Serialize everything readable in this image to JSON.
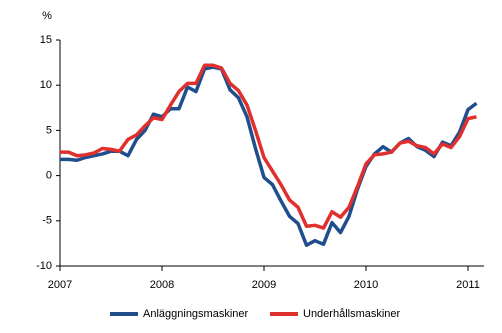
{
  "chart_data": {
    "type": "line",
    "y_label": "%",
    "categories": [
      "2007",
      null,
      null,
      null,
      null,
      null,
      null,
      null,
      null,
      null,
      null,
      null,
      "2008",
      null,
      null,
      null,
      null,
      null,
      null,
      null,
      null,
      null,
      null,
      null,
      "2009",
      null,
      null,
      null,
      null,
      null,
      null,
      null,
      null,
      null,
      null,
      null,
      "2010",
      null,
      null,
      null,
      null,
      null,
      null,
      null,
      null,
      null,
      null,
      null,
      "2011",
      null
    ],
    "series": [
      {
        "name": "Anläggningsmaskiner",
        "color": "#1f4e8c",
        "values": [
          1.8,
          1.8,
          1.7,
          2.0,
          2.2,
          2.4,
          2.7,
          2.7,
          2.2,
          4.0,
          5.0,
          6.8,
          6.5,
          7.4,
          7.4,
          9.8,
          9.3,
          11.8,
          12.0,
          11.8,
          9.5,
          8.6,
          6.5,
          3.0,
          -0.2,
          -1.0,
          -2.8,
          -4.5,
          -5.3,
          -7.7,
          -7.2,
          -7.6,
          -5.2,
          -6.3,
          -4.5,
          -1.5,
          1.0,
          2.4,
          3.2,
          2.6,
          3.6,
          4.1,
          3.2,
          2.8,
          2.1,
          3.7,
          3.3,
          4.8,
          7.3,
          8.0
        ]
      },
      {
        "name": "Underhållsmaskiner",
        "color": "#e0302e",
        "values": [
          2.6,
          2.6,
          2.2,
          2.3,
          2.5,
          3.0,
          2.9,
          2.7,
          4.0,
          4.5,
          5.5,
          6.4,
          6.2,
          7.8,
          9.3,
          10.2,
          10.2,
          12.2,
          12.2,
          11.9,
          10.2,
          9.4,
          7.8,
          5.0,
          2.0,
          0.5,
          -1.0,
          -2.7,
          -3.5,
          -5.6,
          -5.5,
          -5.8,
          -4.0,
          -4.6,
          -3.5,
          -1.2,
          1.3,
          2.3,
          2.4,
          2.6,
          3.6,
          3.8,
          3.3,
          3.1,
          2.4,
          3.5,
          3.1,
          4.3,
          6.3,
          6.5
        ]
      }
    ],
    "ylim": [
      -10,
      15
    ],
    "yticks": [
      -10,
      -5,
      0,
      5,
      10,
      15
    ],
    "grid": false,
    "legend": "bottom"
  }
}
